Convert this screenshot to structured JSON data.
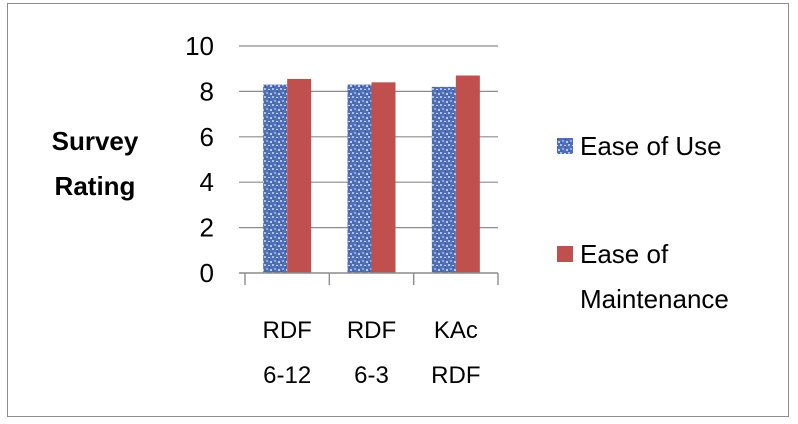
{
  "chart_data": {
    "type": "bar",
    "title": "",
    "ylabel_lines": [
      "Survey",
      "Rating"
    ],
    "xlabel": "",
    "ylim": [
      0,
      10
    ],
    "yticks": [
      0,
      2,
      4,
      6,
      8,
      10
    ],
    "grid": "horizontal",
    "legend_position": "right",
    "categories": [
      [
        "RDF",
        "6-12"
      ],
      [
        "RDF",
        "6-3"
      ],
      [
        "KAc",
        "RDF"
      ]
    ],
    "series": [
      {
        "name": "Ease of Use",
        "legend_lines": [
          "Ease of Use"
        ],
        "values": [
          8.3,
          8.3,
          8.2
        ],
        "color": "#5b7fc4",
        "pattern": "speckled-blue"
      },
      {
        "name": "Ease of Maintenance",
        "legend_lines": [
          "Ease of",
          "Maintenance"
        ],
        "values": [
          8.55,
          8.4,
          8.7
        ],
        "color": "#c0504d",
        "pattern": "solid"
      }
    ]
  }
}
